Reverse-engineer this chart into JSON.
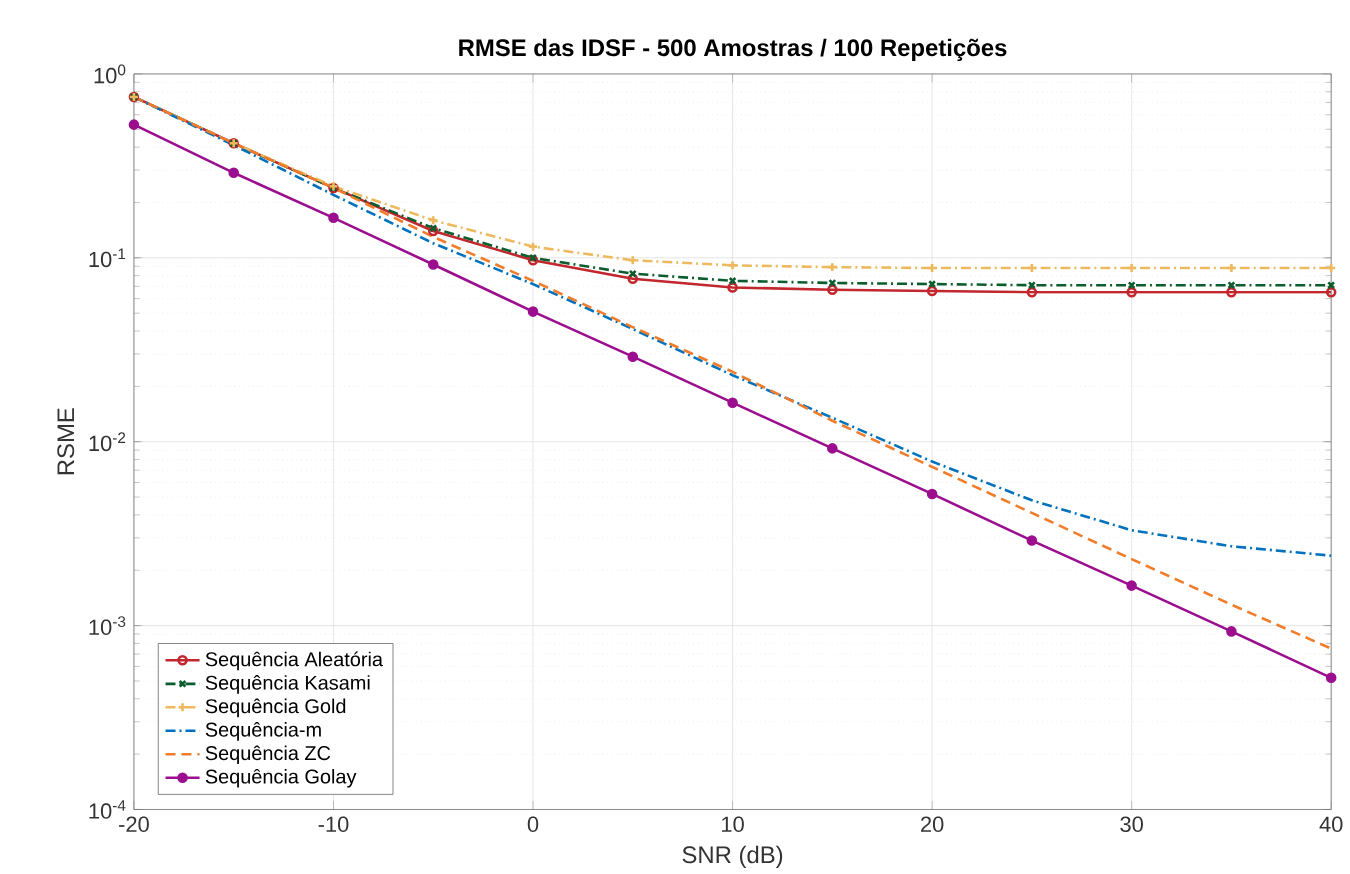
{
  "chart_data": {
    "type": "line",
    "title": "**RMSE das IDSF - 500 Amostras / 100 Repetições**",
    "xlabel": "SNR (dB)",
    "ylabel": "RSME",
    "log": "y",
    "grid": true,
    "legend": "bottom left",
    "x": [
      -20,
      -15,
      -10,
      -5,
      0,
      5,
      10,
      15,
      20,
      25,
      30,
      35,
      40
    ],
    "xlim": [
      -20,
      40
    ],
    "xticks": [
      -20,
      -10,
      0,
      10,
      20,
      30,
      40
    ],
    "ylim": [
      0.0001,
      1
    ],
    "yticks": [
      {
        "value": 0.0001,
        "label": "10$^{-4}$"
      },
      {
        "value": 0.001,
        "label": "10$^{-3}$"
      },
      {
        "value": 0.01,
        "label": "10$^{-2}$"
      },
      {
        "value": 0.1,
        "label": "10$^{-1}$"
      },
      {
        "value": 1,
        "label": "10$^{0}$"
      }
    ],
    "series": [
      {
        "name": "Sequência Aleatória",
        "color": "#c1272d",
        "marker": "circle",
        "line_style": "solid",
        "values": [
          0.75,
          0.42,
          0.24,
          0.14,
          0.097,
          0.077,
          0.069,
          0.067,
          0.066,
          0.065,
          0.065,
          0.065,
          0.065
        ]
      },
      {
        "name": "Sequência Kasami",
        "color": "#0b5d2e",
        "marker": "cross",
        "line_style": "dashdot",
        "values": [
          0.75,
          0.42,
          0.24,
          0.145,
          0.1,
          0.082,
          0.075,
          0.073,
          0.072,
          0.071,
          0.071,
          0.071,
          0.071
        ]
      },
      {
        "name": "Sequência Gold",
        "color": "#edb95e",
        "marker": "plus",
        "line_style": "dashdot",
        "values": [
          0.75,
          0.42,
          0.245,
          0.16,
          0.115,
          0.097,
          0.091,
          0.089,
          0.088,
          0.088,
          0.088,
          0.088,
          0.088
        ]
      },
      {
        "name": "Sequência-m",
        "color": "#0072bd",
        "marker": "none",
        "line_style": "dashdot",
        "values": [
          0.75,
          0.41,
          0.22,
          0.12,
          0.072,
          0.041,
          0.023,
          0.0135,
          0.0078,
          0.0048,
          0.0033,
          0.0027,
          0.0024
        ]
      },
      {
        "name": "Sequência ZC",
        "color": "#f07d2b",
        "marker": "none",
        "line_style": "dashed",
        "values": [
          0.75,
          0.42,
          0.24,
          0.13,
          0.075,
          0.042,
          0.024,
          0.013,
          0.0073,
          0.0041,
          0.0023,
          0.0013,
          0.00075
        ]
      },
      {
        "name": "Sequência Golay",
        "color": "#9b0e8e",
        "marker": "dot",
        "line_style": "solid",
        "values": [
          0.53,
          0.29,
          0.165,
          0.092,
          0.051,
          0.029,
          0.0163,
          0.0092,
          0.0052,
          0.0029,
          0.00165,
          0.00093,
          0.00052
        ]
      }
    ]
  }
}
